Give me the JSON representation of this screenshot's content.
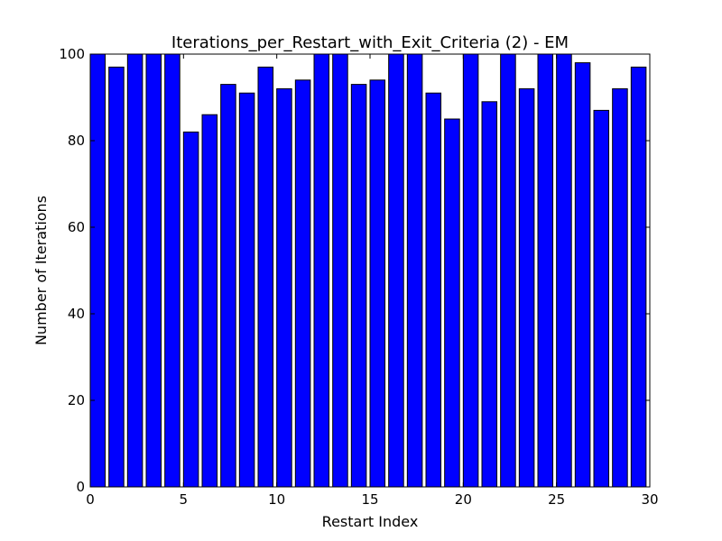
{
  "chart_data": {
    "type": "bar",
    "title": "Iterations_per_Restart_with_Exit_Criteria (2) - EM",
    "xlabel": "Restart Index",
    "ylabel": "Number of Iterations",
    "xlim": [
      0,
      30
    ],
    "ylim": [
      0,
      100
    ],
    "xticks": [
      0,
      5,
      10,
      15,
      20,
      25,
      30
    ],
    "yticks": [
      0,
      20,
      40,
      60,
      80,
      100
    ],
    "bar_color": "#0000ff",
    "bar_width": 0.8,
    "grid": false,
    "x": [
      0,
      1,
      2,
      3,
      4,
      5,
      6,
      7,
      8,
      9,
      10,
      11,
      12,
      13,
      14,
      15,
      16,
      17,
      18,
      19,
      20,
      21,
      22,
      23,
      24,
      25,
      26,
      27,
      28,
      29
    ],
    "values": [
      100,
      97,
      100,
      100,
      100,
      82,
      86,
      93,
      91,
      97,
      92,
      94,
      100,
      100,
      93,
      94,
      100,
      100,
      91,
      85,
      100,
      89,
      100,
      92,
      100,
      100,
      98,
      87,
      92,
      97
    ]
  }
}
